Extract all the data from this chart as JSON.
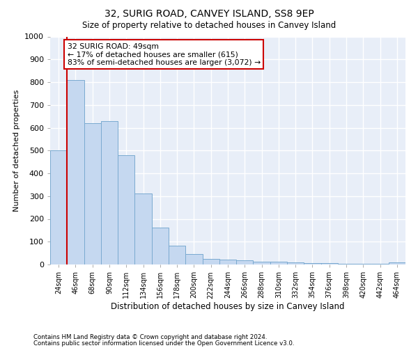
{
  "title": "32, SURIG ROAD, CANVEY ISLAND, SS8 9EP",
  "subtitle": "Size of property relative to detached houses in Canvey Island",
  "xlabel": "Distribution of detached houses by size in Canvey Island",
  "ylabel": "Number of detached properties",
  "bar_color": "#c5d8f0",
  "bar_edge_color": "#7aaad0",
  "background_color": "#e8eef8",
  "grid_color": "#ffffff",
  "categories": [
    "24sqm",
    "46sqm",
    "68sqm",
    "90sqm",
    "112sqm",
    "134sqm",
    "156sqm",
    "178sqm",
    "200sqm",
    "222sqm",
    "244sqm",
    "266sqm",
    "288sqm",
    "310sqm",
    "332sqm",
    "354sqm",
    "376sqm",
    "398sqm",
    "420sqm",
    "442sqm",
    "464sqm"
  ],
  "values": [
    500,
    810,
    620,
    630,
    480,
    310,
    163,
    82,
    46,
    25,
    22,
    18,
    13,
    12,
    8,
    5,
    5,
    2,
    2,
    2,
    10
  ],
  "ylim": [
    0,
    1000
  ],
  "yticks": [
    0,
    100,
    200,
    300,
    400,
    500,
    600,
    700,
    800,
    900,
    1000
  ],
  "property_line_color": "#cc0000",
  "annotation_text": "32 SURIG ROAD: 49sqm\n← 17% of detached houses are smaller (615)\n83% of semi-detached houses are larger (3,072) →",
  "annotation_edge_color": "#cc0000",
  "footnote1": "Contains HM Land Registry data © Crown copyright and database right 2024.",
  "footnote2": "Contains public sector information licensed under the Open Government Licence v3.0."
}
